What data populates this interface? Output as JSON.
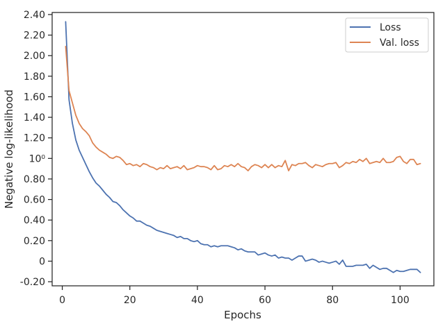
{
  "chart_data": {
    "type": "line",
    "title": "",
    "xlabel": "Epochs",
    "ylabel": "Negative log-likelihood",
    "xlim": [
      -3,
      110
    ],
    "ylim": [
      -0.24,
      2.42
    ],
    "x_ticks": [
      0,
      20,
      40,
      60,
      80,
      100
    ],
    "x_tick_labels": [
      "0",
      "20",
      "40",
      "60",
      "80",
      "100"
    ],
    "y_ticks": [
      -0.2,
      0,
      0.2,
      0.4,
      0.6,
      0.8,
      1.0,
      1.2,
      1.4,
      1.6,
      1.8,
      2.0,
      2.2,
      2.4
    ],
    "y_tick_labels": [
      "-0.20",
      "0",
      "0.20",
      "0.40",
      "0.60",
      "0.80",
      "10⁰",
      "1.20",
      "1.40",
      "1.60",
      "1.80",
      "2.00",
      "2.20",
      "2.40"
    ],
    "grid": false,
    "legend_position": "top-right",
    "series": [
      {
        "name": "Loss",
        "color": "#4c72b0",
        "x": [
          1,
          2,
          3,
          4,
          5,
          6,
          7,
          8,
          9,
          10,
          11,
          12,
          13,
          14,
          15,
          16,
          17,
          18,
          19,
          20,
          21,
          22,
          23,
          24,
          25,
          26,
          27,
          28,
          29,
          30,
          31,
          32,
          33,
          34,
          35,
          36,
          37,
          38,
          39,
          40,
          41,
          42,
          43,
          44,
          45,
          46,
          47,
          48,
          49,
          50,
          51,
          52,
          53,
          54,
          55,
          56,
          57,
          58,
          59,
          60,
          61,
          62,
          63,
          64,
          65,
          66,
          67,
          68,
          69,
          70,
          71,
          72,
          73,
          74,
          75,
          76,
          77,
          78,
          79,
          80,
          81,
          82,
          83,
          84,
          85,
          86,
          87,
          88,
          89,
          90,
          91,
          92,
          93,
          94,
          95,
          96,
          97,
          98,
          99,
          100,
          101,
          102,
          103,
          104,
          105,
          106
        ],
        "values": [
          2.33,
          1.57,
          1.34,
          1.18,
          1.08,
          1.01,
          0.94,
          0.87,
          0.81,
          0.76,
          0.73,
          0.69,
          0.65,
          0.62,
          0.58,
          0.57,
          0.54,
          0.5,
          0.47,
          0.44,
          0.42,
          0.39,
          0.39,
          0.37,
          0.35,
          0.34,
          0.32,
          0.3,
          0.29,
          0.28,
          0.27,
          0.26,
          0.25,
          0.23,
          0.24,
          0.22,
          0.22,
          0.2,
          0.19,
          0.2,
          0.17,
          0.16,
          0.16,
          0.14,
          0.15,
          0.14,
          0.15,
          0.15,
          0.15,
          0.14,
          0.13,
          0.11,
          0.12,
          0.1,
          0.09,
          0.09,
          0.09,
          0.06,
          0.07,
          0.08,
          0.06,
          0.05,
          0.06,
          0.03,
          0.04,
          0.03,
          0.03,
          0.01,
          0.03,
          0.05,
          0.05,
          0.0,
          0.01,
          0.02,
          0.01,
          -0.01,
          0.0,
          -0.01,
          -0.02,
          -0.01,
          0.0,
          -0.03,
          0.01,
          -0.05,
          -0.05,
          -0.05,
          -0.04,
          -0.04,
          -0.04,
          -0.03,
          -0.07,
          -0.04,
          -0.06,
          -0.08,
          -0.07,
          -0.07,
          -0.09,
          -0.11,
          -0.09,
          -0.1,
          -0.1,
          -0.09,
          -0.08,
          -0.08,
          -0.08,
          -0.11
        ]
      },
      {
        "name": "Val. loss",
        "color": "#dd8452",
        "x": [
          1,
          2,
          3,
          4,
          5,
          6,
          7,
          8,
          9,
          10,
          11,
          12,
          13,
          14,
          15,
          16,
          17,
          18,
          19,
          20,
          21,
          22,
          23,
          24,
          25,
          26,
          27,
          28,
          29,
          30,
          31,
          32,
          33,
          34,
          35,
          36,
          37,
          38,
          39,
          40,
          41,
          42,
          43,
          44,
          45,
          46,
          47,
          48,
          49,
          50,
          51,
          52,
          53,
          54,
          55,
          56,
          57,
          58,
          59,
          60,
          61,
          62,
          63,
          64,
          65,
          66,
          67,
          68,
          69,
          70,
          71,
          72,
          73,
          74,
          75,
          76,
          77,
          78,
          79,
          80,
          81,
          82,
          83,
          84,
          85,
          86,
          87,
          88,
          89,
          90,
          91,
          92,
          93,
          94,
          95,
          96,
          97,
          98,
          99,
          100,
          101,
          102,
          103,
          104,
          105,
          106
        ],
        "values": [
          2.09,
          1.66,
          1.54,
          1.42,
          1.34,
          1.29,
          1.26,
          1.22,
          1.15,
          1.11,
          1.08,
          1.06,
          1.04,
          1.01,
          1.0,
          1.02,
          1.01,
          0.98,
          0.94,
          0.95,
          0.93,
          0.94,
          0.92,
          0.95,
          0.94,
          0.92,
          0.91,
          0.89,
          0.91,
          0.9,
          0.93,
          0.9,
          0.91,
          0.92,
          0.9,
          0.93,
          0.89,
          0.9,
          0.91,
          0.93,
          0.92,
          0.92,
          0.91,
          0.89,
          0.93,
          0.89,
          0.9,
          0.93,
          0.92,
          0.94,
          0.92,
          0.95,
          0.92,
          0.91,
          0.88,
          0.92,
          0.94,
          0.93,
          0.91,
          0.94,
          0.91,
          0.94,
          0.91,
          0.93,
          0.92,
          0.98,
          0.88,
          0.94,
          0.93,
          0.95,
          0.95,
          0.96,
          0.93,
          0.91,
          0.94,
          0.93,
          0.92,
          0.94,
          0.95,
          0.95,
          0.96,
          0.91,
          0.93,
          0.96,
          0.95,
          0.97,
          0.96,
          0.99,
          0.97,
          1.0,
          0.95,
          0.96,
          0.97,
          0.96,
          1.0,
          0.96,
          0.96,
          0.97,
          1.01,
          1.02,
          0.97,
          0.95,
          0.99,
          0.99,
          0.94,
          0.95
        ]
      }
    ]
  }
}
